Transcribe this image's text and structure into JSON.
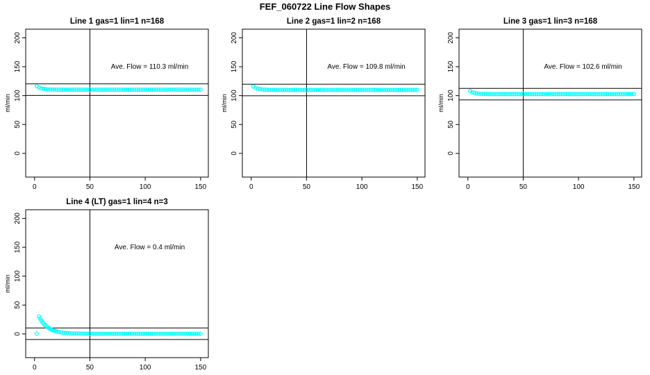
{
  "page_title": "FEF_060722  Line Flow Shapes",
  "accent_color": "#00FFFF",
  "axis_color": "#000000",
  "chart_data": [
    {
      "type": "scatter",
      "title": "Line 1 gas=1 lin=1 n=168",
      "ylabel": "ml/min",
      "annotation": "Ave. Flow =  110.3  ml/min",
      "ave_flow": 110.3,
      "marker": "open-circle",
      "color": "#00FFFF",
      "grid_row": 0,
      "grid_col": 0,
      "xlim": [
        -8,
        157
      ],
      "ylim": [
        -41,
        215
      ],
      "xticks": [
        0,
        50,
        100,
        150
      ],
      "yticks": [
        0,
        50,
        100,
        150,
        200
      ],
      "vline_x": 50,
      "ref_lines_y": [
        120.3,
        100.3
      ],
      "annotation_pos": [
        104,
        150
      ],
      "points": [
        [
          2,
          116.3
        ],
        [
          4,
          113.9
        ],
        [
          6,
          112.5
        ],
        [
          8,
          111.6
        ],
        [
          10,
          111.1
        ],
        [
          12,
          110.8
        ],
        [
          14,
          110.6
        ],
        [
          16,
          110.5
        ],
        [
          18,
          110.4
        ],
        [
          20,
          110.4
        ],
        [
          22,
          110.3
        ],
        [
          24,
          110.3
        ],
        [
          26,
          110.3
        ],
        [
          28,
          110.3
        ],
        [
          30,
          110.3
        ],
        [
          32,
          110.3
        ],
        [
          34,
          110.3
        ],
        [
          36,
          110.3
        ],
        [
          38,
          110.3
        ],
        [
          40,
          110.3
        ],
        [
          42,
          110.3
        ],
        [
          44,
          110.3
        ],
        [
          46,
          110.3
        ],
        [
          48,
          110.3
        ],
        [
          50,
          110.3
        ],
        [
          52,
          110.3
        ],
        [
          54,
          110.3
        ],
        [
          56,
          110.3
        ],
        [
          58,
          110.3
        ],
        [
          60,
          110.3
        ],
        [
          62,
          110.3
        ],
        [
          64,
          110.3
        ],
        [
          66,
          110.3
        ],
        [
          68,
          110.3
        ],
        [
          70,
          110.3
        ],
        [
          72,
          110.3
        ],
        [
          74,
          110.3
        ],
        [
          76,
          110.3
        ],
        [
          78,
          110.3
        ],
        [
          80,
          110.3
        ],
        [
          82,
          110.3
        ],
        [
          84,
          110.3
        ],
        [
          86,
          110.3
        ],
        [
          88,
          110.3
        ],
        [
          90,
          110.3
        ],
        [
          92,
          110.3
        ],
        [
          94,
          110.3
        ],
        [
          96,
          110.3
        ],
        [
          98,
          110.3
        ],
        [
          100,
          110.3
        ],
        [
          102,
          110.3
        ],
        [
          104,
          110.3
        ],
        [
          106,
          110.3
        ],
        [
          108,
          110.3
        ],
        [
          110,
          110.3
        ],
        [
          112,
          110.3
        ],
        [
          114,
          110.3
        ],
        [
          116,
          110.3
        ],
        [
          118,
          110.3
        ],
        [
          120,
          110.3
        ],
        [
          122,
          110.3
        ],
        [
          124,
          110.3
        ],
        [
          126,
          110.3
        ],
        [
          128,
          110.3
        ],
        [
          130,
          110.3
        ],
        [
          132,
          110.3
        ],
        [
          134,
          110.3
        ],
        [
          136,
          110.3
        ],
        [
          138,
          110.3
        ],
        [
          140,
          110.3
        ],
        [
          142,
          110.3
        ],
        [
          144,
          110.3
        ],
        [
          146,
          110.3
        ],
        [
          148,
          110.3
        ],
        [
          150,
          110.3
        ]
      ]
    },
    {
      "type": "scatter",
      "title": "Line 2 gas=1 lin=2 n=168",
      "ylabel": "ml/min",
      "annotation": "Ave. Flow =  109.8  ml/min",
      "ave_flow": 109.8,
      "marker": "open-circle",
      "color": "#00FFFF",
      "grid_row": 0,
      "grid_col": 1,
      "xlim": [
        -8,
        157
      ],
      "ylim": [
        -41,
        215
      ],
      "xticks": [
        0,
        50,
        100,
        150
      ],
      "yticks": [
        0,
        50,
        100,
        150,
        200
      ],
      "vline_x": 50,
      "ref_lines_y": [
        119.8,
        99.8
      ],
      "annotation_pos": [
        104,
        150
      ],
      "points": [
        [
          2,
          115.8
        ],
        [
          4,
          113.4
        ],
        [
          6,
          112.0
        ],
        [
          8,
          111.1
        ],
        [
          10,
          110.6
        ],
        [
          12,
          110.3
        ],
        [
          14,
          110.1
        ],
        [
          16,
          110.0
        ],
        [
          18,
          109.9
        ],
        [
          20,
          109.9
        ],
        [
          22,
          109.8
        ],
        [
          24,
          109.8
        ],
        [
          26,
          109.8
        ],
        [
          28,
          109.8
        ],
        [
          30,
          109.8
        ],
        [
          32,
          109.8
        ],
        [
          34,
          109.8
        ],
        [
          36,
          109.8
        ],
        [
          38,
          109.8
        ],
        [
          40,
          109.8
        ],
        [
          42,
          109.8
        ],
        [
          44,
          109.8
        ],
        [
          46,
          109.8
        ],
        [
          48,
          109.8
        ],
        [
          50,
          109.8
        ],
        [
          52,
          109.8
        ],
        [
          54,
          109.8
        ],
        [
          56,
          109.8
        ],
        [
          58,
          109.8
        ],
        [
          60,
          109.8
        ],
        [
          62,
          109.8
        ],
        [
          64,
          109.8
        ],
        [
          66,
          109.8
        ],
        [
          68,
          109.8
        ],
        [
          70,
          109.8
        ],
        [
          72,
          109.8
        ],
        [
          74,
          109.8
        ],
        [
          76,
          109.8
        ],
        [
          78,
          109.8
        ],
        [
          80,
          109.8
        ],
        [
          82,
          109.8
        ],
        [
          84,
          109.8
        ],
        [
          86,
          109.8
        ],
        [
          88,
          109.8
        ],
        [
          90,
          109.8
        ],
        [
          92,
          109.8
        ],
        [
          94,
          109.8
        ],
        [
          96,
          109.8
        ],
        [
          98,
          109.8
        ],
        [
          100,
          109.8
        ],
        [
          102,
          109.8
        ],
        [
          104,
          109.8
        ],
        [
          106,
          109.8
        ],
        [
          108,
          109.8
        ],
        [
          110,
          109.8
        ],
        [
          112,
          109.8
        ],
        [
          114,
          109.8
        ],
        [
          116,
          109.8
        ],
        [
          118,
          109.8
        ],
        [
          120,
          109.8
        ],
        [
          122,
          109.8
        ],
        [
          124,
          109.8
        ],
        [
          126,
          109.8
        ],
        [
          128,
          109.8
        ],
        [
          130,
          109.8
        ],
        [
          132,
          109.8
        ],
        [
          134,
          109.8
        ],
        [
          136,
          109.8
        ],
        [
          138,
          109.8
        ],
        [
          140,
          109.8
        ],
        [
          142,
          109.8
        ],
        [
          144,
          109.8
        ],
        [
          146,
          109.8
        ],
        [
          148,
          109.8
        ],
        [
          150,
          109.8
        ]
      ]
    },
    {
      "type": "scatter",
      "title": "Line 3 gas=1 lin=3 n=168",
      "ylabel": "ml/min",
      "annotation": "Ave. Flow =  102.6  ml/min",
      "ave_flow": 102.6,
      "marker": "open-circle",
      "color": "#00FFFF",
      "grid_row": 0,
      "grid_col": 2,
      "xlim": [
        -8,
        157
      ],
      "ylim": [
        -41,
        215
      ],
      "xticks": [
        0,
        50,
        100,
        150
      ],
      "yticks": [
        0,
        50,
        100,
        150,
        200
      ],
      "vline_x": 50,
      "ref_lines_y": [
        112.6,
        92.6
      ],
      "annotation_pos": [
        104,
        150
      ],
      "points": [
        [
          2,
          107.6
        ],
        [
          4,
          105.6
        ],
        [
          6,
          104.4
        ],
        [
          8,
          103.7
        ],
        [
          10,
          103.3
        ],
        [
          12,
          103.0
        ],
        [
          14,
          102.9
        ],
        [
          16,
          102.8
        ],
        [
          18,
          102.7
        ],
        [
          20,
          102.7
        ],
        [
          22,
          102.6
        ],
        [
          24,
          102.6
        ],
        [
          26,
          102.6
        ],
        [
          28,
          102.6
        ],
        [
          30,
          102.6
        ],
        [
          32,
          102.6
        ],
        [
          34,
          102.6
        ],
        [
          36,
          102.6
        ],
        [
          38,
          102.6
        ],
        [
          40,
          102.6
        ],
        [
          42,
          102.6
        ],
        [
          44,
          102.6
        ],
        [
          46,
          102.6
        ],
        [
          48,
          102.6
        ],
        [
          50,
          102.6
        ],
        [
          52,
          102.6
        ],
        [
          54,
          102.6
        ],
        [
          56,
          102.6
        ],
        [
          58,
          102.6
        ],
        [
          60,
          102.6
        ],
        [
          62,
          102.6
        ],
        [
          64,
          102.6
        ],
        [
          66,
          102.6
        ],
        [
          68,
          102.6
        ],
        [
          70,
          102.6
        ],
        [
          72,
          102.6
        ],
        [
          74,
          102.6
        ],
        [
          76,
          102.6
        ],
        [
          78,
          102.6
        ],
        [
          80,
          102.6
        ],
        [
          82,
          102.6
        ],
        [
          84,
          102.6
        ],
        [
          86,
          102.6
        ],
        [
          88,
          102.6
        ],
        [
          90,
          102.6
        ],
        [
          92,
          102.6
        ],
        [
          94,
          102.6
        ],
        [
          96,
          102.6
        ],
        [
          98,
          102.6
        ],
        [
          100,
          102.6
        ],
        [
          102,
          102.6
        ],
        [
          104,
          102.6
        ],
        [
          106,
          102.6
        ],
        [
          108,
          102.6
        ],
        [
          110,
          102.6
        ],
        [
          112,
          102.6
        ],
        [
          114,
          102.6
        ],
        [
          116,
          102.6
        ],
        [
          118,
          102.6
        ],
        [
          120,
          102.6
        ],
        [
          122,
          102.6
        ],
        [
          124,
          102.6
        ],
        [
          126,
          102.6
        ],
        [
          128,
          102.6
        ],
        [
          130,
          102.6
        ],
        [
          132,
          102.6
        ],
        [
          134,
          102.6
        ],
        [
          136,
          102.6
        ],
        [
          138,
          102.6
        ],
        [
          140,
          102.6
        ],
        [
          142,
          102.6
        ],
        [
          144,
          102.6
        ],
        [
          146,
          102.6
        ],
        [
          148,
          102.6
        ],
        [
          150,
          102.6
        ]
      ]
    },
    {
      "type": "scatter",
      "title": "Line 4 (LT) gas=1 lin=4 n=3",
      "ylabel": "ml/min",
      "annotation": "Ave. Flow =  0.4  ml/min",
      "ave_flow": 0.4,
      "marker": "open-circle",
      "color": "#00FFFF",
      "grid_row": 1,
      "grid_col": 0,
      "xlim": [
        -8,
        157
      ],
      "ylim": [
        -41,
        215
      ],
      "xticks": [
        0,
        50,
        100,
        150
      ],
      "yticks": [
        0,
        50,
        100,
        150,
        200
      ],
      "vline_x": 50,
      "ref_lines_y": [
        10.4,
        -9.6
      ],
      "annotation_pos": [
        104,
        150
      ],
      "points": [
        [
          2,
          0.5
        ],
        [
          4,
          30.0
        ],
        [
          5,
          26.5
        ],
        [
          6,
          23.4
        ],
        [
          7,
          20.7
        ],
        [
          8,
          18.3
        ],
        [
          9,
          16.2
        ],
        [
          10,
          14.3
        ],
        [
          11,
          12.7
        ],
        [
          12,
          11.2
        ],
        [
          13,
          9.9
        ],
        [
          14,
          8.8
        ],
        [
          15,
          7.8
        ],
        [
          16,
          6.9
        ],
        [
          17,
          6.1
        ],
        [
          18,
          5.4
        ],
        [
          19,
          4.8
        ],
        [
          20,
          4.3
        ],
        [
          22,
          3.4
        ],
        [
          24,
          2.7
        ],
        [
          26,
          2.2
        ],
        [
          28,
          1.8
        ],
        [
          30,
          1.5
        ],
        [
          32,
          1.2
        ],
        [
          34,
          1.0
        ],
        [
          36,
          0.9
        ],
        [
          38,
          0.8
        ],
        [
          40,
          0.7
        ],
        [
          42,
          0.6
        ],
        [
          44,
          0.6
        ],
        [
          46,
          0.5
        ],
        [
          48,
          0.5
        ],
        [
          50,
          0.5
        ],
        [
          52,
          0.4
        ],
        [
          54,
          0.4
        ],
        [
          56,
          0.4
        ],
        [
          58,
          0.4
        ],
        [
          60,
          0.4
        ],
        [
          62,
          0.4
        ],
        [
          64,
          0.4
        ],
        [
          66,
          0.4
        ],
        [
          68,
          0.4
        ],
        [
          70,
          0.4
        ],
        [
          72,
          0.4
        ],
        [
          74,
          0.4
        ],
        [
          76,
          0.4
        ],
        [
          78,
          0.4
        ],
        [
          80,
          0.4
        ],
        [
          82,
          0.4
        ],
        [
          84,
          0.4
        ],
        [
          86,
          0.4
        ],
        [
          88,
          0.4
        ],
        [
          90,
          0.4
        ],
        [
          92,
          0.4
        ],
        [
          94,
          0.4
        ],
        [
          96,
          0.4
        ],
        [
          98,
          0.4
        ],
        [
          100,
          0.4
        ],
        [
          102,
          0.4
        ],
        [
          104,
          0.4
        ],
        [
          106,
          0.4
        ],
        [
          108,
          0.4
        ],
        [
          110,
          0.4
        ],
        [
          112,
          0.4
        ],
        [
          114,
          0.4
        ],
        [
          116,
          0.4
        ],
        [
          118,
          0.4
        ],
        [
          120,
          0.4
        ],
        [
          122,
          0.4
        ],
        [
          124,
          0.4
        ],
        [
          126,
          0.4
        ],
        [
          128,
          0.4
        ],
        [
          130,
          0.4
        ],
        [
          132,
          0.4
        ],
        [
          134,
          0.4
        ],
        [
          136,
          0.4
        ],
        [
          138,
          0.4
        ],
        [
          140,
          0.4
        ],
        [
          142,
          0.4
        ],
        [
          144,
          0.4
        ],
        [
          146,
          0.4
        ],
        [
          148,
          0.4
        ],
        [
          150,
          0.4
        ]
      ]
    }
  ]
}
